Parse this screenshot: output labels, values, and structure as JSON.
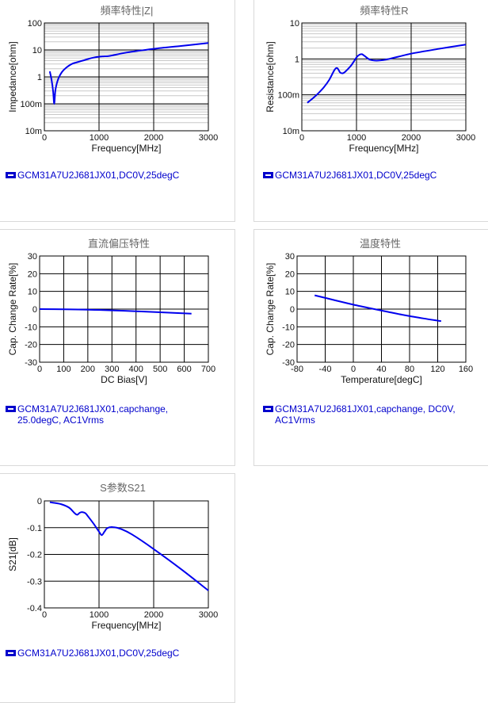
{
  "legend_color": "#0000cc",
  "line_color": "#0000ee",
  "chart_data": [
    {
      "type": "line",
      "title": "頻率特性|Z|",
      "xlabel": "Frequency[MHz]",
      "ylabel": "Impedance[ohm]",
      "xlim": [
        0,
        3000
      ],
      "ylim": [
        0.01,
        100
      ],
      "yscale": "log",
      "x_ticks": [
        "0",
        "1000",
        "2000",
        "3000"
      ],
      "y_ticks": [
        "10m",
        "100m",
        "1",
        "10",
        "100"
      ],
      "legend": "GCM31A7U2J681JX01,DC0V,25degC",
      "series": [
        {
          "x": [
            100,
            130,
            160,
            180,
            200,
            220,
            260,
            320,
            400,
            500,
            600,
            700,
            800,
            900,
            1000,
            1100,
            1200,
            1500,
            2000,
            2500,
            3000
          ],
          "y": [
            1.6,
            0.8,
            0.3,
            0.1,
            0.3,
            0.5,
            0.9,
            1.5,
            2.2,
            3.0,
            3.5,
            4.0,
            4.6,
            5.2,
            5.6,
            5.8,
            6.0,
            8.0,
            11.0,
            14.0,
            18.0
          ]
        }
      ]
    },
    {
      "type": "line",
      "title": "頻率特性R",
      "xlabel": "Frequency[MHz]",
      "ylabel": "Resistance[ohm]",
      "xlim": [
        0,
        3000
      ],
      "ylim": [
        0.01,
        10
      ],
      "yscale": "log",
      "x_ticks": [
        "0",
        "1000",
        "2000",
        "3000"
      ],
      "y_ticks": [
        "10m",
        "100m",
        "1",
        "10"
      ],
      "legend": "GCM31A7U2J681JX01,DC0V,25degC",
      "series": [
        {
          "x": [
            100,
            200,
            300,
            400,
            500,
            600,
            650,
            700,
            750,
            800,
            900,
            1000,
            1050,
            1100,
            1150,
            1250,
            1400,
            1600,
            2000,
            2500,
            3000
          ],
          "y": [
            0.06,
            0.08,
            0.11,
            0.16,
            0.26,
            0.5,
            0.55,
            0.42,
            0.4,
            0.45,
            0.65,
            1.1,
            1.3,
            1.35,
            1.2,
            0.95,
            0.9,
            1.0,
            1.4,
            1.9,
            2.5
          ]
        }
      ]
    },
    {
      "type": "line",
      "title": "直流偏压特性",
      "xlabel": "DC Bias[V]",
      "ylabel": "Cap. Change Rate[%]",
      "xlim": [
        0,
        700
      ],
      "ylim": [
        -30,
        30
      ],
      "x_ticks": [
        "0",
        "100",
        "200",
        "300",
        "400",
        "500",
        "600",
        "700"
      ],
      "y_ticks": [
        "-30",
        "-20",
        "-10",
        "0",
        "10",
        "20",
        "30"
      ],
      "legend": "GCM31A7U2J681JX01,capchange, 25.0degC, AC1Vrms",
      "series": [
        {
          "x": [
            0,
            100,
            200,
            300,
            400,
            500,
            630
          ],
          "y": [
            0,
            -0.1,
            -0.3,
            -0.7,
            -1.2,
            -1.8,
            -2.6
          ]
        }
      ]
    },
    {
      "type": "line",
      "title": "温度特性",
      "xlabel": "Temperature[degC]",
      "ylabel": "Cap. Change Rate[%]",
      "xlim": [
        -80,
        160
      ],
      "ylim": [
        -30,
        30
      ],
      "x_ticks": [
        "-80",
        "-40",
        "0",
        "40",
        "80",
        "120",
        "160"
      ],
      "y_ticks": [
        "-30",
        "-20",
        "-10",
        "0",
        "10",
        "20",
        "30"
      ],
      "legend": "GCM31A7U2J681JX01,capchange, DC0V, AC1Vrms",
      "series": [
        {
          "x": [
            -55,
            -25,
            0,
            25,
            50,
            75,
            100,
            125
          ],
          "y": [
            7.8,
            4.9,
            2.5,
            0.4,
            -1.6,
            -3.6,
            -5.3,
            -6.8
          ]
        }
      ]
    },
    {
      "type": "line",
      "title": "S参数S21",
      "xlabel": "Frequency[MHz]",
      "ylabel": "S21[dB]",
      "xlim": [
        0,
        3000
      ],
      "ylim": [
        -0.4,
        0
      ],
      "x_ticks": [
        "0",
        "1000",
        "2000",
        "3000"
      ],
      "y_ticks": [
        "-0.4",
        "-0.3",
        "-0.2",
        "-0.1",
        "0"
      ],
      "legend": "GCM31A7U2J681JX01,DC0V,25degC",
      "series": [
        {
          "x": [
            100,
            300,
            450,
            550,
            600,
            650,
            700,
            750,
            800,
            900,
            1000,
            1050,
            1100,
            1150,
            1250,
            1400,
            1600,
            2000,
            2500,
            3000
          ],
          "y": [
            -0.005,
            -0.012,
            -0.025,
            -0.045,
            -0.052,
            -0.044,
            -0.042,
            -0.046,
            -0.058,
            -0.085,
            -0.115,
            -0.128,
            -0.115,
            -0.102,
            -0.098,
            -0.105,
            -0.125,
            -0.18,
            -0.255,
            -0.335
          ]
        }
      ]
    }
  ]
}
